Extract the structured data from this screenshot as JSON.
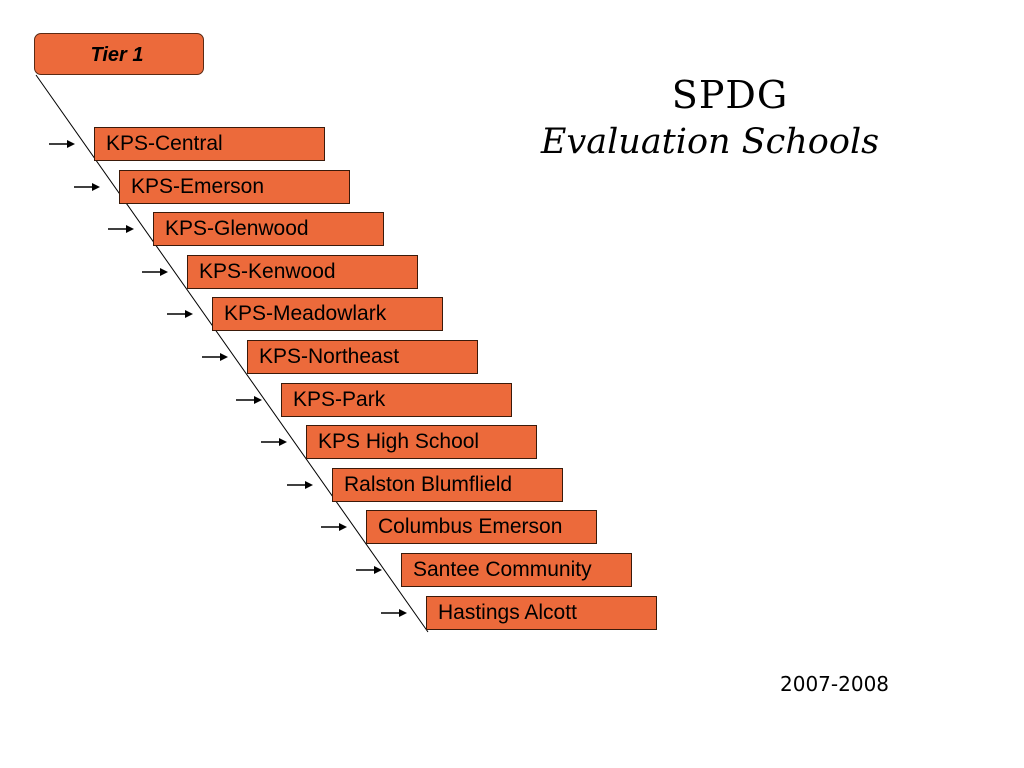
{
  "tier": {
    "label": "Tier 1"
  },
  "title": {
    "main": "SPDG",
    "sub": "Evaluation Schools"
  },
  "year": "2007-2008",
  "schools": [
    "KPS-Central",
    "KPS-Emerson",
    "KPS-Glenwood",
    "KPS-Kenwood",
    "KPS-Meadowlark",
    "KPS-Northeast",
    "KPS-Park",
    "KPS High School",
    "Ralston Blumflield",
    "Columbus Emerson",
    "Santee Community",
    "Hastings Alcott"
  ],
  "colors": {
    "box_fill": "#ec6a3b",
    "line": "#000000"
  },
  "icons": {
    "pointer": "right-arrow-icon"
  }
}
